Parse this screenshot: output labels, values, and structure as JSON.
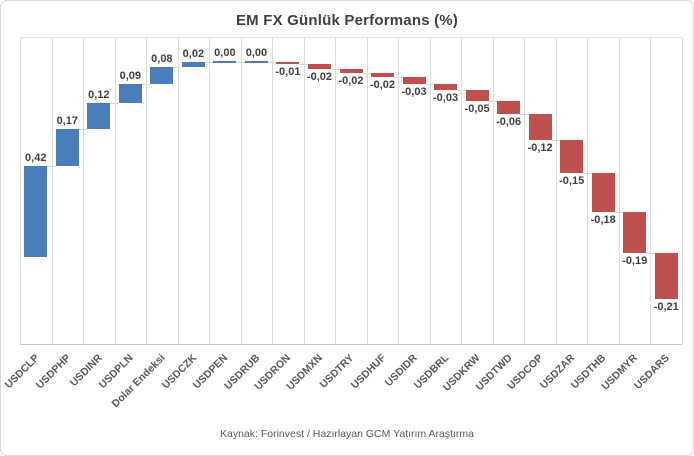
{
  "chart_data": {
    "type": "bar",
    "subtype": "waterfall",
    "title": "EM FX Günlük Performans (%)",
    "source_note": "Kaynak: Forinvest / Hazırlayan GCM Yatırım Araştırma",
    "categories": [
      "USDCLP",
      "USDPHP",
      "USDINR",
      "USDPLN",
      "Dolar Endeksi",
      "USDCZK",
      "USDPEN",
      "USDRUB",
      "USDRON",
      "USDMXN",
      "USDTRY",
      "USDHUF",
      "USDIDR",
      "USDBRL",
      "USDKRW",
      "USDTWD",
      "USDCOP",
      "USDZAR",
      "USDTHB",
      "USDMYR",
      "USDARS"
    ],
    "values": [
      0.42,
      0.17,
      0.12,
      0.09,
      0.08,
      0.02,
      0.0,
      0.0,
      -0.01,
      -0.02,
      -0.02,
      -0.02,
      -0.03,
      -0.03,
      -0.05,
      -0.06,
      -0.12,
      -0.15,
      -0.18,
      -0.19,
      -0.21
    ],
    "value_labels": [
      "0,42",
      "0,17",
      "0,12",
      "0,09",
      "0,08",
      "0,02",
      "0,00",
      "0,00",
      "-0,01",
      "-0,02",
      "-0,02",
      "-0,02",
      "-0,03",
      "-0,03",
      "-0,05",
      "-0,06",
      "-0,12",
      "-0,15",
      "-0,18",
      "-0,19",
      "-0,21"
    ],
    "colors": {
      "positive": "#4a7ebb",
      "negative": "#c0504d"
    },
    "legend": "none",
    "grid": "vertical-category-gridlines",
    "xlabel": "",
    "ylabel": ""
  }
}
